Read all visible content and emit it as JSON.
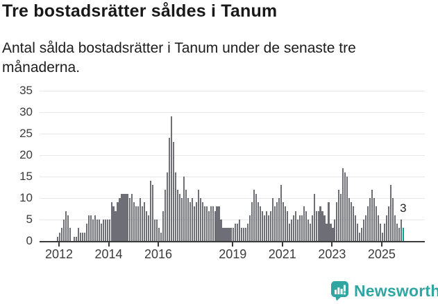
{
  "title": "Tre bostadsrätter såldes i Tanum",
  "subtitle": "Antal sålda bostadsrätter i Tanum under de senaste tre månaderna.",
  "chart_data": {
    "type": "bar",
    "title": "Tre bostadsrätter såldes i Tanum",
    "description": "Antal sålda bostadsrätter i Tanum under de senaste tre månaderna.",
    "frequency": "monthly",
    "x_start": "2011-12",
    "x_end": "2025-11",
    "values": [
      1,
      2,
      3,
      5,
      7,
      6,
      3,
      0,
      1,
      1,
      3,
      2,
      2,
      2,
      4,
      6,
      6,
      5,
      6,
      5,
      5,
      4,
      5,
      5,
      5,
      5,
      9,
      8,
      7,
      9,
      10,
      11,
      11,
      11,
      11,
      10,
      11,
      9,
      8,
      8,
      10,
      8,
      9,
      7,
      6,
      14,
      13,
      5,
      5,
      3,
      2,
      7,
      12,
      16,
      24,
      29,
      23,
      16,
      12,
      11,
      10,
      15,
      12,
      10,
      9,
      10,
      8,
      9,
      12,
      10,
      9,
      8,
      8,
      7,
      8,
      8,
      7,
      8,
      8,
      5,
      3,
      3,
      3,
      3,
      3,
      3,
      4,
      4,
      5,
      3,
      3,
      3,
      4,
      6,
      9,
      12,
      11,
      9,
      8,
      7,
      6,
      7,
      6,
      7,
      10,
      8,
      9,
      10,
      13,
      9,
      8,
      7,
      4,
      5,
      6,
      7,
      5,
      6,
      6,
      8,
      7,
      5,
      4,
      6,
      11,
      7,
      7,
      8,
      7,
      6,
      4,
      9,
      4,
      3,
      5,
      9,
      12,
      11,
      17,
      16,
      15,
      10,
      9,
      8,
      6,
      4,
      2,
      3,
      5,
      6,
      8,
      10,
      12,
      10,
      8,
      6,
      4,
      2,
      4,
      6,
      8,
      13,
      10,
      6,
      4,
      3,
      5,
      3
    ],
    "last_value": 3,
    "last_value_label": "3",
    "ylim": [
      0,
      35
    ],
    "yticks": [
      0,
      5,
      10,
      15,
      20,
      25,
      30,
      35
    ],
    "xticks": [
      "2012",
      "2014",
      "2016",
      "2019",
      "2021",
      "2023",
      "2025"
    ],
    "grid": true,
    "legend": "none",
    "bar_color": "#6E6E76",
    "highlight_color": "#00A39A"
  },
  "footer": {
    "brand": "Newsworthy",
    "brand_color": "#2FA6A2"
  }
}
